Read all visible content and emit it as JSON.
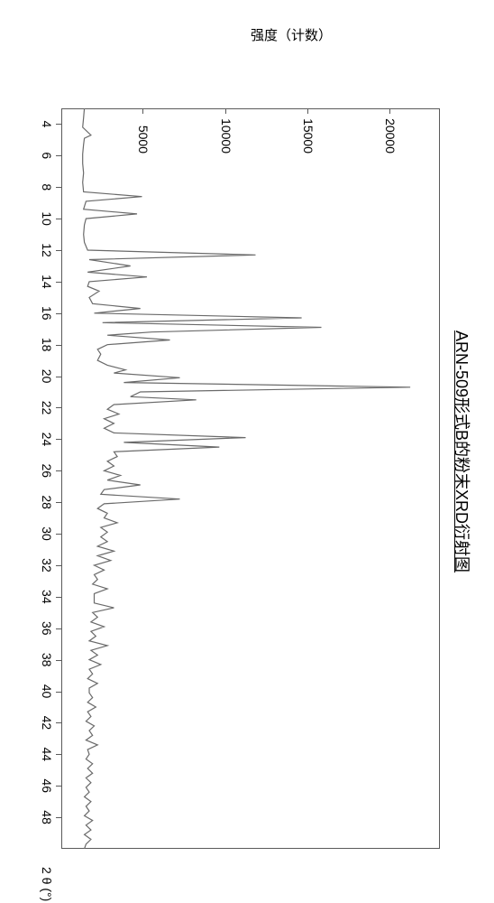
{
  "title": "ARN-509形式B的粉末XRD衍射图",
  "ylabel": "强度（计数）",
  "xlabel": "2 θ (°)",
  "chart": {
    "type": "line",
    "background_color": "#ffffff",
    "frame_color": "#5a5a5a",
    "line_color": "#6a6a6a",
    "line_width": 1.2,
    "text_color": "#000000",
    "tick_fontsize": 14,
    "label_fontsize": 15,
    "title_fontsize": 18,
    "xlim": [
      3,
      50
    ],
    "ylim": [
      0,
      23000
    ],
    "xticks": [
      4,
      6,
      8,
      10,
      12,
      14,
      16,
      18,
      20,
      22,
      24,
      26,
      28,
      30,
      32,
      34,
      36,
      38,
      40,
      42,
      44,
      46,
      48
    ],
    "yticks": [
      5000,
      10000,
      15000,
      20000
    ],
    "data": [
      [
        3.0,
        1400
      ],
      [
        3.6,
        1350
      ],
      [
        4.2,
        1300
      ],
      [
        4.7,
        1800
      ],
      [
        4.9,
        1400
      ],
      [
        5.3,
        1350
      ],
      [
        5.9,
        1300
      ],
      [
        6.5,
        1300
      ],
      [
        7.1,
        1350
      ],
      [
        7.7,
        1300
      ],
      [
        8.3,
        1350
      ],
      [
        8.6,
        4900
      ],
      [
        8.9,
        1500
      ],
      [
        9.4,
        1350
      ],
      [
        9.7,
        4600
      ],
      [
        10.0,
        1500
      ],
      [
        10.4,
        1400
      ],
      [
        11.0,
        1350
      ],
      [
        11.5,
        1400
      ],
      [
        12.0,
        1600
      ],
      [
        12.3,
        11800
      ],
      [
        12.6,
        1700
      ],
      [
        13.0,
        4200
      ],
      [
        13.4,
        1600
      ],
      [
        13.7,
        5200
      ],
      [
        14.0,
        1700
      ],
      [
        14.3,
        1600
      ],
      [
        14.6,
        2300
      ],
      [
        15.0,
        1700
      ],
      [
        15.4,
        1900
      ],
      [
        15.7,
        4800
      ],
      [
        16.0,
        2000
      ],
      [
        16.3,
        14600
      ],
      [
        16.6,
        2500
      ],
      [
        16.9,
        15800
      ],
      [
        17.2,
        5500
      ],
      [
        17.4,
        2800
      ],
      [
        17.7,
        6600
      ],
      [
        18.0,
        2800
      ],
      [
        18.3,
        2200
      ],
      [
        18.6,
        2400
      ],
      [
        19.0,
        2200
      ],
      [
        19.3,
        2800
      ],
      [
        19.6,
        3900
      ],
      [
        19.8,
        3200
      ],
      [
        20.1,
        7200
      ],
      [
        20.4,
        3800
      ],
      [
        20.7,
        21200
      ],
      [
        21.0,
        4800
      ],
      [
        21.3,
        4200
      ],
      [
        21.5,
        8200
      ],
      [
        21.8,
        3200
      ],
      [
        22.1,
        2800
      ],
      [
        22.4,
        3500
      ],
      [
        22.7,
        2600
      ],
      [
        23.0,
        3200
      ],
      [
        23.3,
        2600
      ],
      [
        23.6,
        3200
      ],
      [
        23.9,
        11200
      ],
      [
        24.2,
        3800
      ],
      [
        24.5,
        9600
      ],
      [
        24.8,
        3200
      ],
      [
        25.1,
        3400
      ],
      [
        25.4,
        2800
      ],
      [
        25.7,
        3200
      ],
      [
        26.0,
        2600
      ],
      [
        26.3,
        3600
      ],
      [
        26.6,
        2800
      ],
      [
        26.9,
        4800
      ],
      [
        27.2,
        2600
      ],
      [
        27.5,
        2400
      ],
      [
        27.8,
        7200
      ],
      [
        28.1,
        2600
      ],
      [
        28.4,
        2200
      ],
      [
        28.7,
        2800
      ],
      [
        29.0,
        2600
      ],
      [
        29.3,
        3400
      ],
      [
        29.6,
        2400
      ],
      [
        29.9,
        2800
      ],
      [
        30.2,
        2400
      ],
      [
        30.5,
        2800
      ],
      [
        30.8,
        2200
      ],
      [
        31.1,
        3200
      ],
      [
        31.4,
        2200
      ],
      [
        31.7,
        3000
      ],
      [
        32.0,
        2000
      ],
      [
        32.3,
        2600
      ],
      [
        32.6,
        2000
      ],
      [
        32.9,
        2200
      ],
      [
        33.2,
        1900
      ],
      [
        33.5,
        2800
      ],
      [
        33.8,
        2000
      ],
      [
        34.1,
        2000
      ],
      [
        34.4,
        2000
      ],
      [
        34.7,
        3200
      ],
      [
        35.0,
        1900
      ],
      [
        35.3,
        2200
      ],
      [
        35.6,
        1800
      ],
      [
        35.9,
        2600
      ],
      [
        36.2,
        1800
      ],
      [
        36.5,
        2100
      ],
      [
        36.8,
        1700
      ],
      [
        37.1,
        2800
      ],
      [
        37.4,
        1800
      ],
      [
        37.7,
        2200
      ],
      [
        38.0,
        1700
      ],
      [
        38.3,
        2400
      ],
      [
        38.6,
        1700
      ],
      [
        38.9,
        1900
      ],
      [
        39.2,
        1600
      ],
      [
        39.5,
        2200
      ],
      [
        39.8,
        1700
      ],
      [
        40.1,
        1700
      ],
      [
        40.4,
        1900
      ],
      [
        40.7,
        1600
      ],
      [
        41.0,
        2100
      ],
      [
        41.3,
        1600
      ],
      [
        41.6,
        1800
      ],
      [
        41.9,
        1500
      ],
      [
        42.2,
        2000
      ],
      [
        42.5,
        1700
      ],
      [
        42.8,
        1900
      ],
      [
        43.1,
        1500
      ],
      [
        43.4,
        2200
      ],
      [
        43.7,
        1600
      ],
      [
        44.0,
        1700
      ],
      [
        44.3,
        1500
      ],
      [
        44.6,
        1900
      ],
      [
        44.9,
        1600
      ],
      [
        45.2,
        1900
      ],
      [
        45.5,
        1500
      ],
      [
        45.8,
        1800
      ],
      [
        46.1,
        1500
      ],
      [
        46.4,
        1700
      ],
      [
        46.7,
        1400
      ],
      [
        47.0,
        1800
      ],
      [
        47.3,
        1500
      ],
      [
        47.6,
        1700
      ],
      [
        47.9,
        1400
      ],
      [
        48.2,
        1900
      ],
      [
        48.5,
        1500
      ],
      [
        48.8,
        1800
      ],
      [
        49.1,
        1400
      ],
      [
        49.4,
        1800
      ],
      [
        49.7,
        1500
      ],
      [
        50.0,
        1400
      ]
    ]
  }
}
